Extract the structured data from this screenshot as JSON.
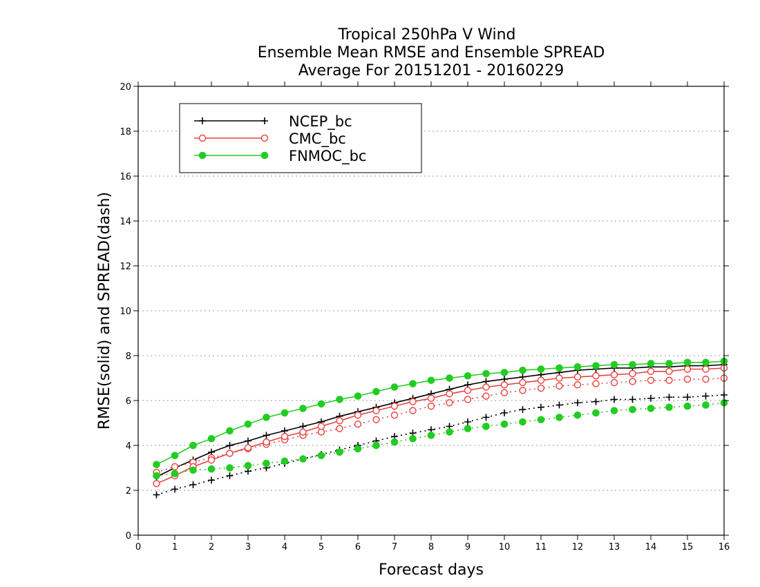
{
  "chart_data": {
    "type": "line",
    "title_lines": [
      "Tropical 250hPa V Wind",
      "Ensemble Mean RMSE and Ensemble SPREAD",
      "Average For 20151201 - 20160229"
    ],
    "xlabel": "Forecast days",
    "ylabel": "RMSE(solid) and SPREAD(dash)",
    "xlim": [
      0,
      16
    ],
    "ylim": [
      0,
      20
    ],
    "x_ticks": [
      "0",
      "1",
      "2",
      "3",
      "4",
      "5",
      "6",
      "7",
      "8",
      "9",
      "10",
      "11",
      "12",
      "13",
      "14",
      "15",
      "16"
    ],
    "y_ticks": [
      "0",
      "2",
      "4",
      "6",
      "8",
      "10",
      "12",
      "14",
      "16",
      "18",
      "20"
    ],
    "grid": "horizontal dotted",
    "legend_position": "top-left",
    "x": [
      0.5,
      1,
      1.5,
      2,
      2.5,
      3,
      3.5,
      4,
      4.5,
      5,
      5.5,
      6,
      6.5,
      7,
      7.5,
      8,
      8.5,
      9,
      9.5,
      10,
      10.5,
      11,
      11.5,
      12,
      12.5,
      13,
      13.5,
      14,
      14.5,
      15,
      15.5,
      16
    ],
    "series": [
      {
        "name": "NCEP_bc",
        "color": "#000000",
        "marker": "plus",
        "rmse": [
          2.6,
          3.0,
          3.35,
          3.7,
          4.0,
          4.2,
          4.45,
          4.65,
          4.85,
          5.05,
          5.3,
          5.5,
          5.7,
          5.9,
          6.1,
          6.3,
          6.5,
          6.7,
          6.85,
          6.95,
          7.05,
          7.15,
          7.25,
          7.35,
          7.4,
          7.45,
          7.45,
          7.5,
          7.5,
          7.55,
          7.55,
          7.6
        ],
        "spread": [
          1.8,
          2.05,
          2.25,
          2.45,
          2.65,
          2.85,
          3.0,
          3.2,
          3.4,
          3.6,
          3.8,
          4.0,
          4.2,
          4.4,
          4.55,
          4.7,
          4.85,
          5.05,
          5.25,
          5.45,
          5.6,
          5.7,
          5.8,
          5.9,
          5.95,
          6.05,
          6.05,
          6.1,
          6.15,
          6.15,
          6.2,
          6.25
        ]
      },
      {
        "name": "CMC_bc",
        "color": "#e8423f",
        "marker": "open-circle",
        "rmse": [
          2.3,
          2.65,
          3.05,
          3.35,
          3.65,
          3.9,
          4.15,
          4.4,
          4.6,
          4.85,
          5.1,
          5.35,
          5.55,
          5.75,
          5.95,
          6.1,
          6.3,
          6.45,
          6.6,
          6.7,
          6.8,
          6.9,
          7.0,
          7.05,
          7.1,
          7.15,
          7.2,
          7.3,
          7.3,
          7.4,
          7.4,
          7.45
        ],
        "spread": [
          2.8,
          3.05,
          3.25,
          3.45,
          3.65,
          3.85,
          4.05,
          4.25,
          4.45,
          4.6,
          4.75,
          4.95,
          5.15,
          5.35,
          5.55,
          5.75,
          5.9,
          6.05,
          6.2,
          6.35,
          6.45,
          6.55,
          6.65,
          6.7,
          6.75,
          6.8,
          6.85,
          6.9,
          6.9,
          6.95,
          6.95,
          7.0
        ]
      },
      {
        "name": "FNMOC_bc",
        "color": "#22cc22",
        "marker": "filled-circle",
        "rmse": [
          3.15,
          3.55,
          4.0,
          4.3,
          4.65,
          4.95,
          5.25,
          5.45,
          5.65,
          5.85,
          6.05,
          6.2,
          6.4,
          6.6,
          6.75,
          6.9,
          7.0,
          7.1,
          7.2,
          7.25,
          7.35,
          7.4,
          7.45,
          7.5,
          7.55,
          7.6,
          7.6,
          7.65,
          7.65,
          7.7,
          7.7,
          7.75
        ],
        "spread": [
          2.65,
          2.75,
          2.9,
          2.95,
          3.0,
          3.1,
          3.2,
          3.3,
          3.4,
          3.55,
          3.7,
          3.85,
          4.0,
          4.15,
          4.3,
          4.45,
          4.6,
          4.75,
          4.85,
          4.95,
          5.05,
          5.15,
          5.25,
          5.35,
          5.45,
          5.55,
          5.6,
          5.65,
          5.7,
          5.75,
          5.8,
          5.9
        ]
      }
    ]
  }
}
